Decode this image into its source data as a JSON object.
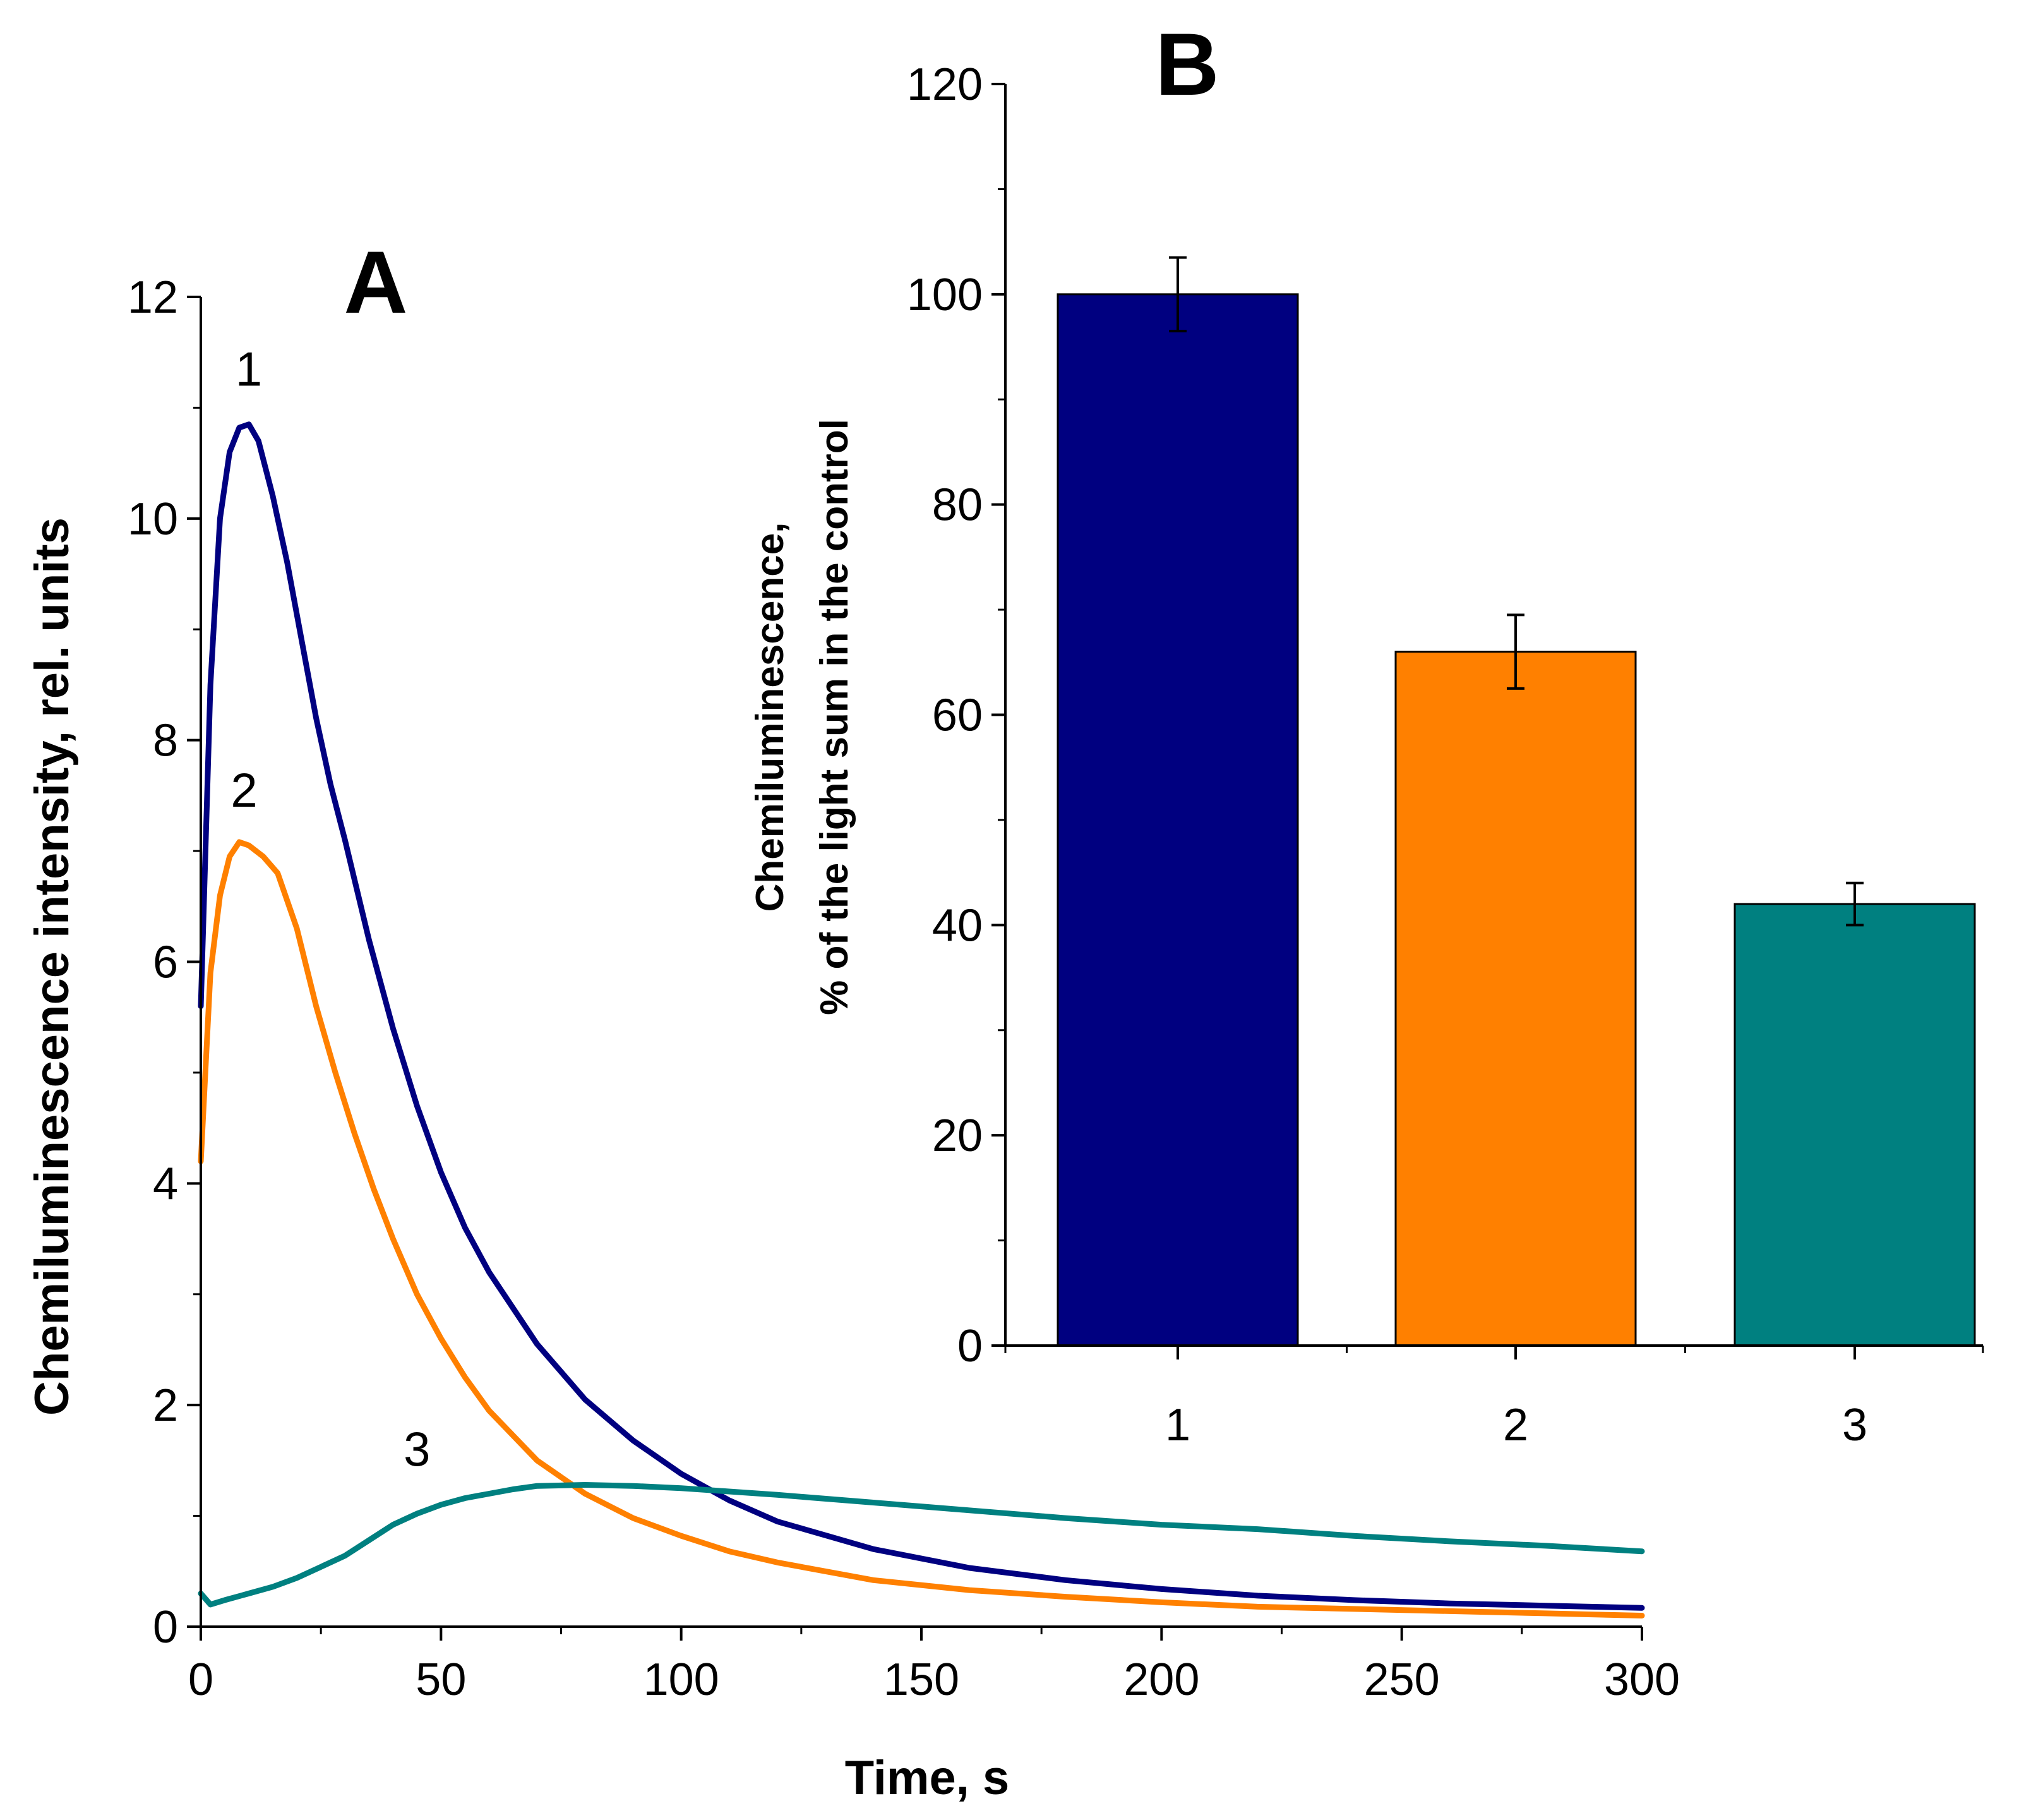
{
  "chart_data": [
    {
      "panel": "A",
      "type": "line",
      "title": "A",
      "xlabel": "Time, s",
      "ylabel": "Chemiluminescence intensity, rel. units",
      "xlim": [
        0,
        300
      ],
      "ylim": [
        0,
        12
      ],
      "xticks": [
        0,
        50,
        100,
        150,
        200,
        250,
        300
      ],
      "yticks": [
        0,
        2,
        4,
        6,
        8,
        10,
        12
      ],
      "xtick_labels": [
        "0",
        "50",
        "100",
        "150",
        "200",
        "250",
        "300"
      ],
      "ytick_labels": [
        "0",
        "2",
        "4",
        "6",
        "8",
        "10",
        "12"
      ],
      "grid": false,
      "series": [
        {
          "name": "1",
          "color": "#000080",
          "x": [
            0,
            2,
            4,
            6,
            8,
            10,
            12,
            15,
            18,
            21,
            24,
            27,
            30,
            35,
            40,
            45,
            50,
            55,
            60,
            70,
            80,
            90,
            100,
            110,
            120,
            140,
            160,
            180,
            200,
            220,
            240,
            260,
            280,
            300
          ],
          "y": [
            5.6,
            8.5,
            10.0,
            10.6,
            10.82,
            10.85,
            10.7,
            10.2,
            9.6,
            8.9,
            8.2,
            7.6,
            7.1,
            6.2,
            5.4,
            4.7,
            4.1,
            3.6,
            3.2,
            2.55,
            2.05,
            1.68,
            1.38,
            1.14,
            0.95,
            0.7,
            0.53,
            0.42,
            0.34,
            0.28,
            0.24,
            0.21,
            0.19,
            0.17
          ]
        },
        {
          "name": "2",
          "color": "#FF8000",
          "x": [
            0,
            2,
            4,
            6,
            8,
            10,
            13,
            16,
            20,
            24,
            28,
            32,
            36,
            40,
            45,
            50,
            55,
            60,
            70,
            80,
            90,
            100,
            110,
            120,
            140,
            160,
            180,
            200,
            220,
            240,
            260,
            280,
            300
          ],
          "y": [
            4.2,
            5.9,
            6.6,
            6.95,
            7.08,
            7.05,
            6.95,
            6.8,
            6.3,
            5.6,
            5.0,
            4.45,
            3.95,
            3.5,
            3.0,
            2.6,
            2.25,
            1.95,
            1.5,
            1.2,
            0.98,
            0.82,
            0.68,
            0.58,
            0.42,
            0.33,
            0.27,
            0.22,
            0.18,
            0.16,
            0.14,
            0.12,
            0.1
          ]
        },
        {
          "name": "3",
          "color": "#008080",
          "x": [
            0,
            2,
            5,
            10,
            15,
            20,
            25,
            30,
            35,
            40,
            45,
            50,
            55,
            60,
            65,
            70,
            80,
            90,
            100,
            110,
            120,
            140,
            160,
            180,
            200,
            220,
            240,
            260,
            280,
            300
          ],
          "y": [
            0.3,
            0.2,
            0.24,
            0.3,
            0.36,
            0.44,
            0.54,
            0.64,
            0.78,
            0.92,
            1.02,
            1.1,
            1.16,
            1.2,
            1.24,
            1.27,
            1.28,
            1.27,
            1.25,
            1.22,
            1.19,
            1.12,
            1.05,
            0.98,
            0.92,
            0.88,
            0.82,
            0.77,
            0.73,
            0.68
          ]
        }
      ],
      "annotations": [
        {
          "text": "1",
          "x": 10,
          "y": 11.2
        },
        {
          "text": "2",
          "x": 9,
          "y": 7.4
        },
        {
          "text": "3",
          "x": 45,
          "y": 1.45
        }
      ]
    },
    {
      "panel": "B",
      "type": "bar",
      "title": "B",
      "xlabel": "",
      "ylabel": [
        "Chemiluminescence,",
        "% of the light sum in the control"
      ],
      "categories": [
        "1",
        "2",
        "3"
      ],
      "values": [
        100,
        66,
        42
      ],
      "errors": [
        3.5,
        3.5,
        2.0
      ],
      "colors": [
        "#000080",
        "#FF8000",
        "#008080"
      ],
      "ylim": [
        0,
        120
      ],
      "yticks": [
        0,
        20,
        40,
        60,
        80,
        100,
        120
      ],
      "ytick_labels": [
        "0",
        "20",
        "40",
        "60",
        "80",
        "100",
        "120"
      ],
      "grid": false
    }
  ]
}
